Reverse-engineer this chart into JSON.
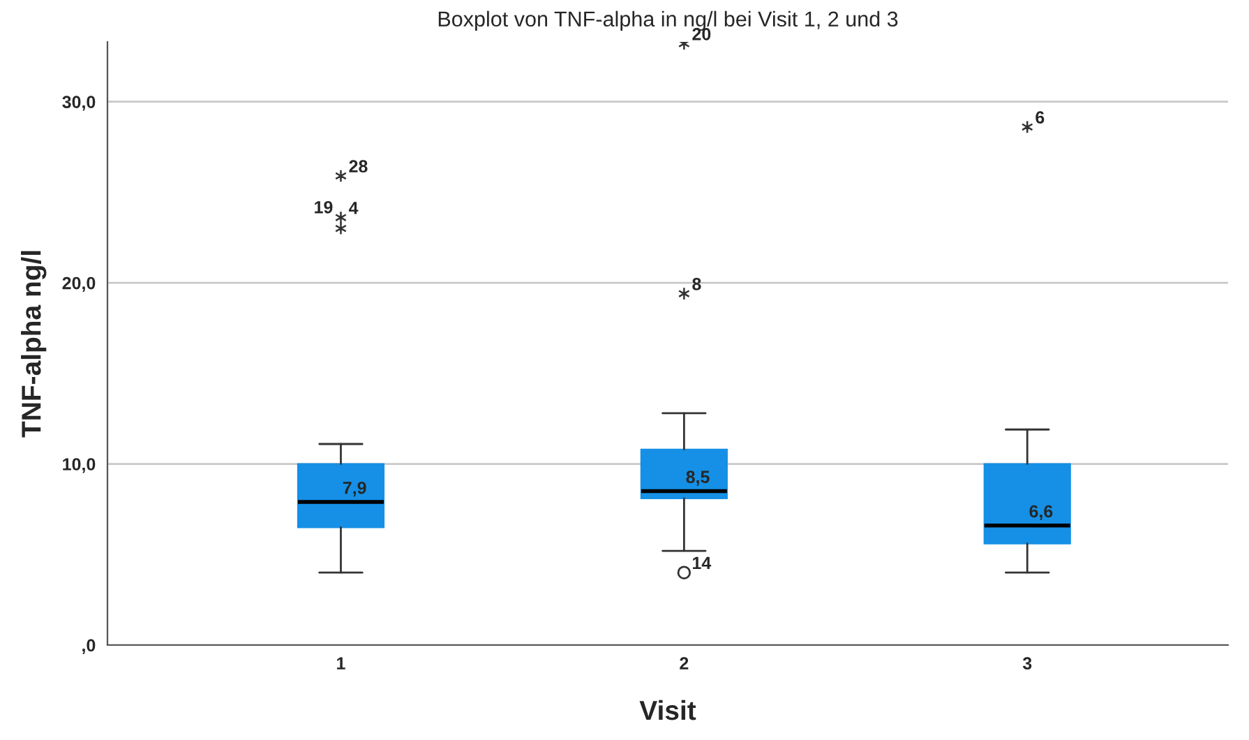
{
  "chart_data": {
    "type": "box",
    "title": "Boxplot von TNF-alpha in ng/l bei Visit 1, 2 und 3",
    "xlabel": "Visit",
    "ylabel": "TNF-alpha ng/l",
    "categories": [
      "1",
      "2",
      "3"
    ],
    "color": "#1590e6",
    "boxes": [
      {
        "low": 4.0,
        "q1": 6.5,
        "median": 7.9,
        "q3": 10.0,
        "high": 11.1
      },
      {
        "low": 5.2,
        "q1": 8.1,
        "median": 8.5,
        "q3": 10.8,
        "high": 12.8
      },
      {
        "low": 4.0,
        "q1": 5.6,
        "median": 6.6,
        "q3": 10.0,
        "high": 11.9
      }
    ],
    "series": [
      {
        "type": "scatter",
        "color": "#333333",
        "x": [
          "1",
          "1",
          "1",
          "2",
          "2",
          "2",
          "3"
        ],
        "values": [
          25.9,
          23.6,
          23.0,
          4.0,
          19.4,
          33.2,
          28.6
        ]
      }
    ],
    "ylim": [
      0,
      33.3
    ],
    "yticks": [
      {
        "value": 0,
        "label": ",0"
      },
      {
        "value": 10,
        "label": "10,0"
      },
      {
        "value": 20,
        "label": "20,0"
      },
      {
        "value": 30,
        "label": "30,0"
      }
    ],
    "grid": "y",
    "annotations": [
      {
        "text": "7,9",
        "x": "1",
        "y": 7.9
      },
      {
        "text": "8,5",
        "x": "2",
        "y": 8.5
      },
      {
        "text": "6,6",
        "x": "3",
        "y": 6.6
      },
      {
        "text": "28",
        "x": "1",
        "y": 25.9
      },
      {
        "text": "4",
        "x": "1",
        "y": 23.6
      },
      {
        "text": "19",
        "x": "1",
        "y": 23.0
      },
      {
        "text": "14",
        "x": "2",
        "y": 4.0
      },
      {
        "text": "8",
        "x": "2",
        "y": 19.4
      },
      {
        "text": "20",
        "x": "2",
        "y": 33.2
      },
      {
        "text": "6",
        "x": "3",
        "y": 28.6
      }
    ]
  }
}
